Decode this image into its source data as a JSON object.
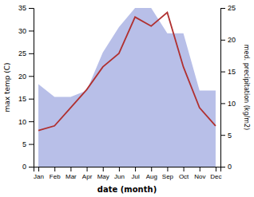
{
  "chart_data": {
    "type": "line",
    "categories": [
      "Jan",
      "Feb",
      "Mar",
      "Apr",
      "May",
      "Jun",
      "Jul",
      "Aug",
      "Sep",
      "Oct",
      "Nov",
      "Dec"
    ],
    "series": [
      {
        "type": "area",
        "color": "#b8bfe8",
        "axis": "y2",
        "values": [
          13,
          11,
          11,
          12,
          18,
          22,
          25,
          25,
          21,
          21,
          12,
          12
        ]
      },
      {
        "type": "line",
        "color": "#b03030",
        "values": [
          8,
          9,
          13,
          17,
          22,
          25,
          33,
          31,
          34,
          22,
          13,
          9
        ]
      }
    ],
    "xlabel": "date (month)",
    "ylabel": "max temp (C)",
    "y2label": "med. precipitation (kg/m2)",
    "ylim": [
      0,
      35
    ],
    "yticks": [
      0,
      5,
      10,
      15,
      20,
      25,
      30,
      35
    ],
    "y2lim": [
      0,
      25
    ],
    "y2ticks": [
      0,
      5,
      10,
      15,
      20,
      25
    ],
    "grid": false
  }
}
